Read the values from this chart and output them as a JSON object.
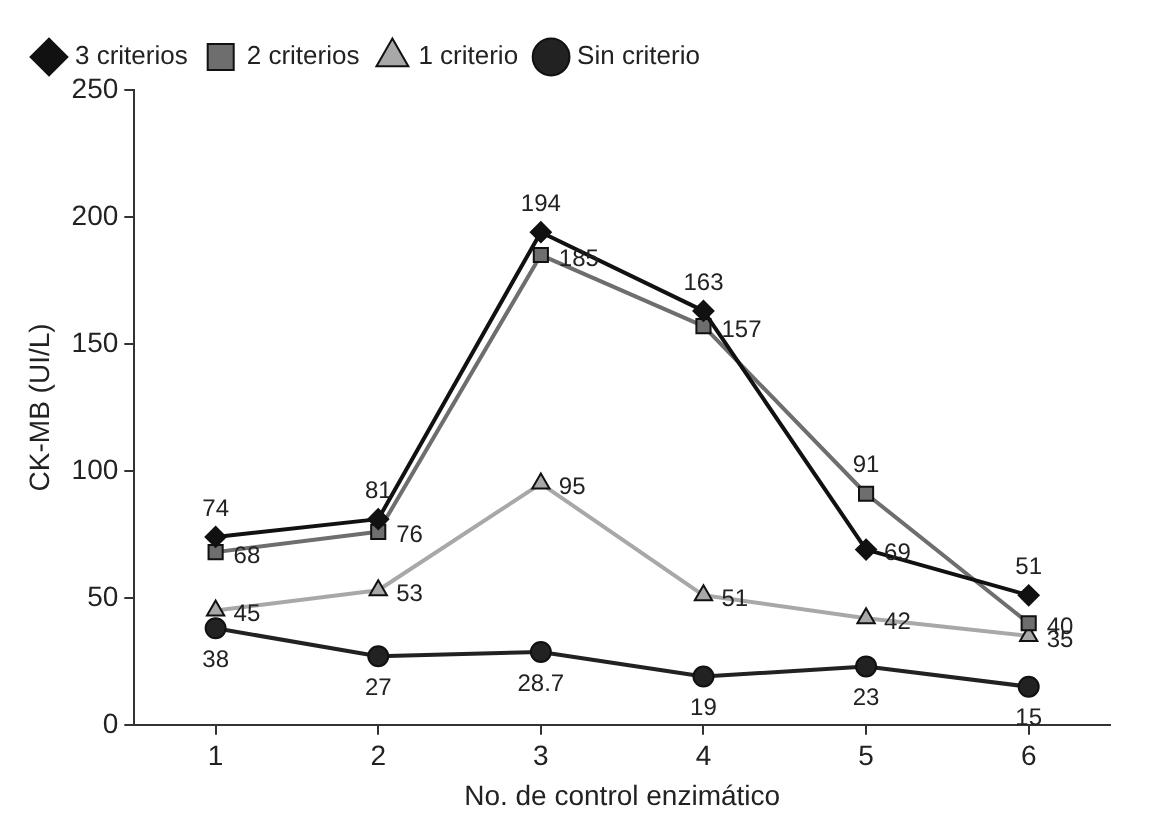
{
  "chart_data": {
    "type": "line",
    "xlabel": "No. de control enzimático",
    "ylabel": "CK-MB (UI/L)",
    "categories": [
      "1",
      "2",
      "3",
      "4",
      "5",
      "6"
    ],
    "series": [
      {
        "name": "3 criterios",
        "color": "#111111",
        "marker": "diamond",
        "values": [
          74,
          81,
          194,
          163,
          69,
          51
        ]
      },
      {
        "name": "2 criterios",
        "color": "#6e6e6e",
        "marker": "square",
        "values": [
          68,
          76,
          185,
          157,
          91,
          40
        ]
      },
      {
        "name": "1 criterio",
        "color": "#a8a8a8",
        "marker": "triangle",
        "values": [
          45,
          53,
          95,
          51,
          42,
          35
        ]
      },
      {
        "name": "Sin criterio",
        "color": "#222222",
        "marker": "circle",
        "values": [
          38,
          27,
          28.7,
          19,
          23,
          15
        ]
      }
    ],
    "ylim": [
      0,
      250
    ],
    "yticks": [
      0,
      50,
      100,
      150,
      200,
      250
    ],
    "grid": false,
    "legend": "top left",
    "data_labels": true,
    "line_style": "solid"
  }
}
